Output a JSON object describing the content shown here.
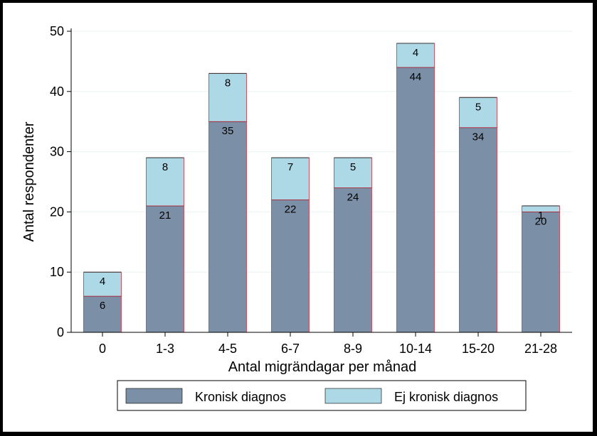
{
  "chart_data": {
    "type": "bar",
    "stacked": true,
    "categories": [
      "0",
      "1-3",
      "4-5",
      "6-7",
      "8-9",
      "10-14",
      "15-20",
      "21-28"
    ],
    "series": [
      {
        "name": "Kronisk diagnos",
        "values": [
          6,
          21,
          35,
          22,
          24,
          44,
          34,
          20
        ],
        "color": "#7b8fa6"
      },
      {
        "name": "Ej kronisk diagnos",
        "values": [
          4,
          8,
          8,
          7,
          5,
          4,
          5,
          1
        ],
        "color": "#add8e6"
      }
    ],
    "title": "",
    "xlabel": "Antal migrändagar per månad",
    "ylabel": "Antal respondenter",
    "ylim": [
      0,
      50
    ],
    "yticks": [
      0,
      10,
      20,
      30,
      40,
      50
    ],
    "grid": true,
    "legend": "bottom",
    "outline_color": "#c0283c"
  }
}
